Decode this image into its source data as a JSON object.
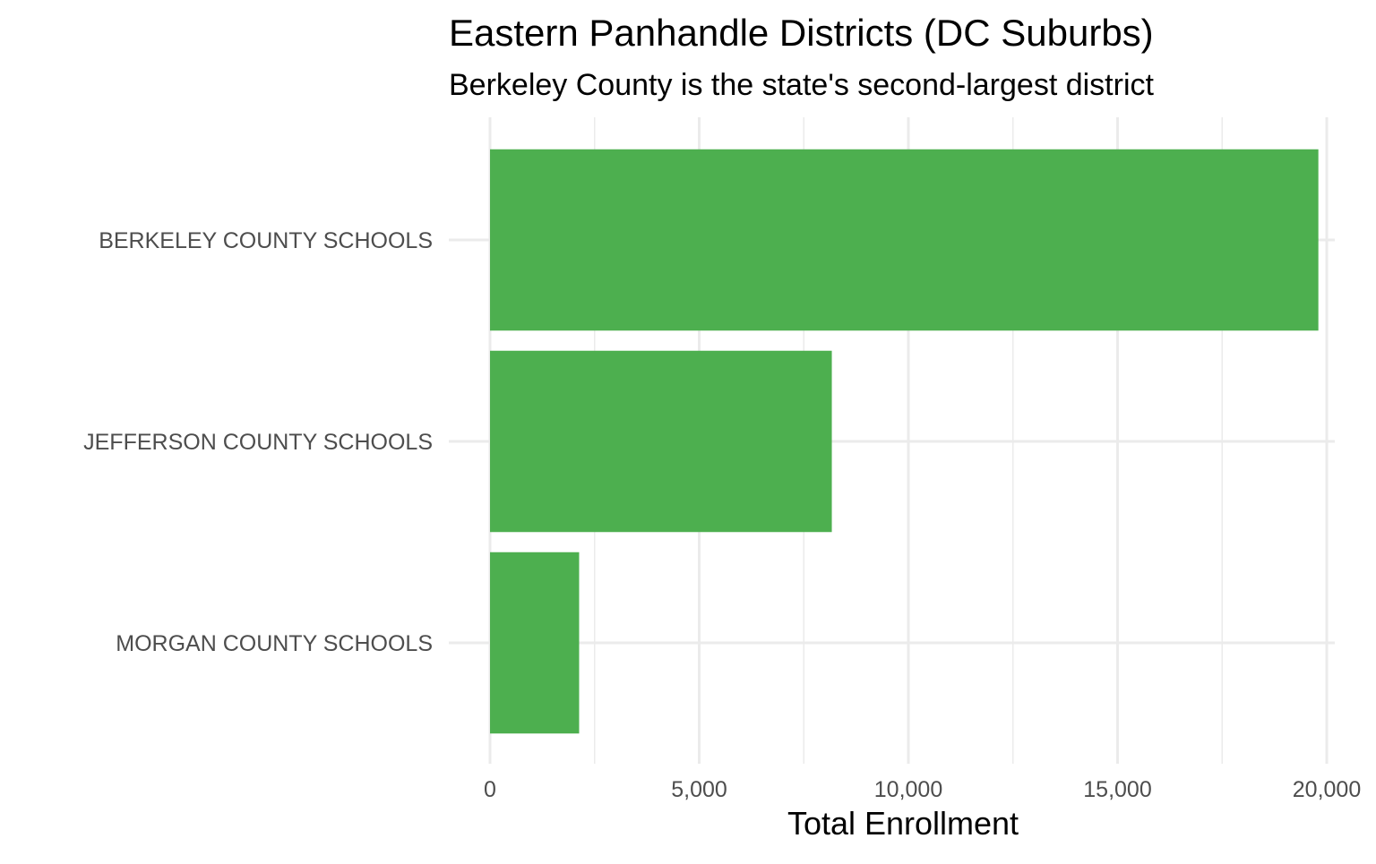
{
  "chart_data": {
    "type": "bar",
    "orientation": "horizontal",
    "title": "Eastern Panhandle Districts (DC Suburbs)",
    "subtitle": "Berkeley County is the state's second-largest district",
    "xlabel": "Total Enrollment",
    "ylabel": "",
    "categories": [
      "BERKELEY COUNTY SCHOOLS",
      "JEFFERSON COUNTY SCHOOLS",
      "MORGAN COUNTY SCHOOLS"
    ],
    "values": [
      19800,
      8170,
      2130
    ],
    "xlim": [
      0,
      20000
    ],
    "x_ticks": [
      0,
      5000,
      10000,
      15000,
      20000
    ],
    "x_tick_labels": [
      "0",
      "5,000",
      "10,000",
      "15,000",
      "20,000"
    ],
    "grid": true,
    "legend": "none",
    "bar_color": "#4daf4f"
  }
}
